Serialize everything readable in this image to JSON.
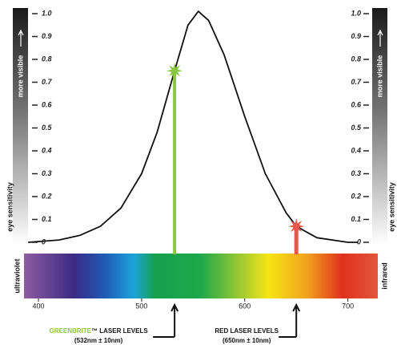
{
  "chart_data": {
    "type": "line",
    "x": [
      390,
      420,
      440,
      460,
      480,
      500,
      515,
      532,
      545,
      555,
      565,
      580,
      600,
      620,
      640,
      650,
      670,
      700,
      710
    ],
    "values": [
      0,
      0.01,
      0.03,
      0.07,
      0.15,
      0.3,
      0.48,
      0.75,
      0.95,
      1.01,
      0.97,
      0.82,
      0.55,
      0.3,
      0.13,
      0.07,
      0.02,
      0,
      0
    ],
    "color": "#111111",
    "xlim": [
      386,
      729
    ],
    "xticks": [
      400,
      500,
      600,
      700
    ],
    "ylim": [
      0,
      1
    ],
    "yticks": [
      {
        "value": 1,
        "label": "1.0"
      },
      0.9,
      0.8,
      0.7,
      0.6,
      0.5,
      0.4,
      0.3,
      0.2,
      0.1,
      0
    ],
    "y2lim": [
      0,
      1
    ],
    "y2ticks": [
      {
        "value": 1,
        "label": "1.0"
      },
      0.9,
      0.8,
      0.7,
      0.6,
      0.5,
      0.4,
      0.3,
      0.2,
      0.1,
      0
    ],
    "y_label": "eye sensitivity",
    "y2_label": "eye sensitivity",
    "y_note": "more visible",
    "y2_note": "more visible",
    "spectrum_left": "ultraviolet",
    "spectrum_right": "infrared",
    "markers": [
      {
        "x": 532,
        "value": 0.75,
        "color": "#8cc63f",
        "brand": "GREENBRITE",
        "label": "™ LASER LEVELS",
        "sublabel": "(532nm ± 10nm)"
      },
      {
        "x": 650,
        "value": 0.07,
        "color": "#e8584a",
        "brand": "RED",
        "label": " LASER LEVELS",
        "sublabel": "(650nm ± 10nm)"
      }
    ]
  }
}
